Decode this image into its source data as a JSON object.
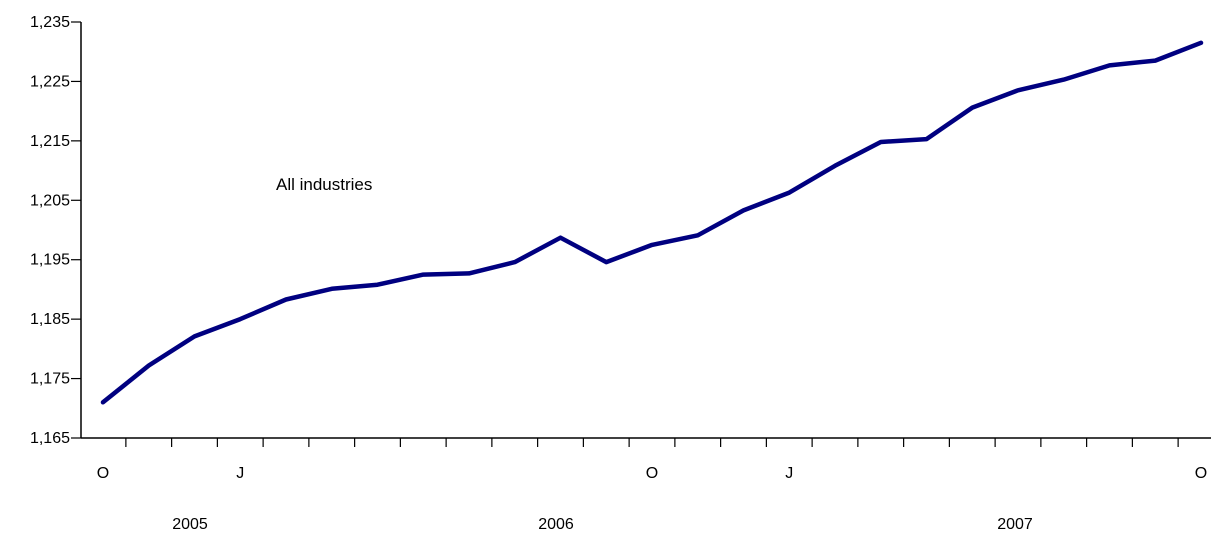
{
  "chart_data": {
    "type": "line",
    "title": "",
    "xlabel": "",
    "ylabel": "",
    "ylim": [
      1165,
      1235
    ],
    "y_ticks": [
      "1,235",
      "1,225",
      "1,215",
      "1,205",
      "1,195",
      "1,185",
      "1,175",
      "1,165"
    ],
    "x_ticks": [
      "O",
      "J",
      "O",
      "J",
      "O"
    ],
    "year_labels": [
      "2005",
      "2006",
      "2007"
    ],
    "annotation": "All industries",
    "grid": false,
    "legend": "none",
    "line_color": "#000080",
    "series": [
      {
        "values": [
          1171,
          1177.2,
          1182.1,
          1185,
          1188.3,
          1190.1,
          1190.8,
          1192.5,
          1192.7,
          1194.6,
          1198.7,
          1194.6,
          1197.5,
          1199.1,
          1203.3,
          1206.3,
          1210.8,
          1214.8,
          1215.3,
          1220.6,
          1223.5,
          1225.3,
          1227.7,
          1228.5,
          1231.5
        ]
      }
    ]
  }
}
